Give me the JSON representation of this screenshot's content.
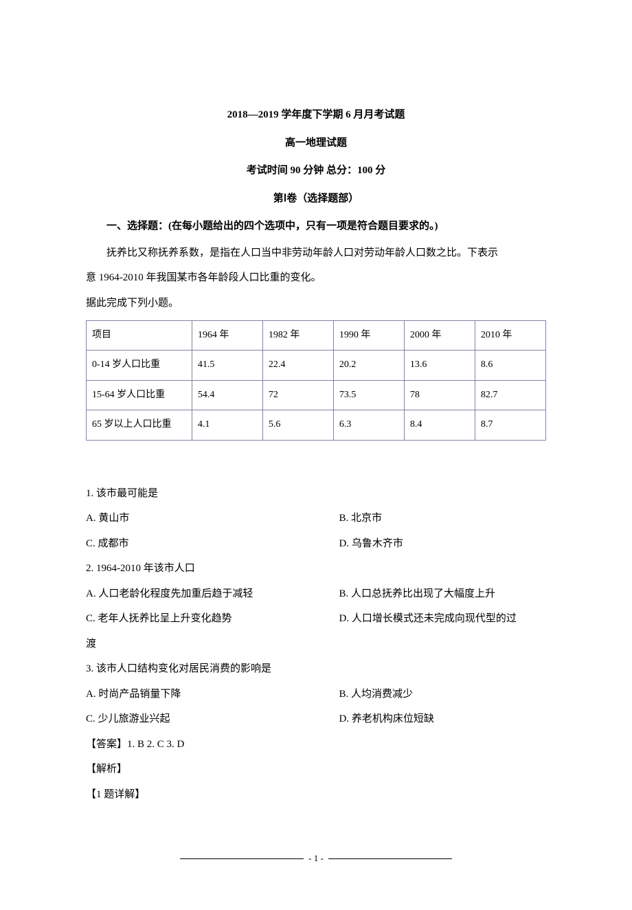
{
  "header": {
    "title": "2018—2019 学年度下学期 6 月月考试题",
    "subtitle": "高一地理试题",
    "exam_info": "考试时间 90 分钟  总分：100 分",
    "section": "第Ⅰ卷（选择题部）"
  },
  "instruction": "一、选择题：(在每小题给出的四个选项中，只有一项是符合题目要求的。)",
  "passage_line1": "抚养比又称抚养系数，是指在人口当中非劳动年龄人口对劳动年龄人口数之比。下表示",
  "passage_line2": "意 1964-2010 年我国某市各年龄段人口比重的变化。",
  "passage_line3": "据此完成下列小题。",
  "table": {
    "border_color": "#8b7ba8",
    "columns": [
      "项目",
      "1964 年",
      "1982 年",
      "1990 年",
      "2000 年",
      "2010 年"
    ],
    "rows": [
      [
        "0-14 岁人口比重",
        "41.5",
        "22.4",
        "20.2",
        "13.6",
        "8.6"
      ],
      [
        "15-64 岁人口比重",
        "54.4",
        "72",
        "73.5",
        "78",
        "82.7"
      ],
      [
        "65 岁以上人口比重",
        "4.1",
        "5.6",
        "6.3",
        "8.4",
        "8.7"
      ]
    ]
  },
  "questions": {
    "q1": {
      "text": "1. 该市最可能是",
      "optA": "A. 黄山市",
      "optB": "B. 北京市",
      "optC": "C. 成都市",
      "optD": "D. 乌鲁木齐市"
    },
    "q2": {
      "text": "2. 1964-2010 年该市人口",
      "optA": "A. 人口老龄化程度先加重后趋于减轻",
      "optB": "B. 人口总抚养比出现了大幅度上升",
      "optC": "C. 老年人抚养比呈上升变化趋势",
      "optD": "D. 人口增长模式还未完成向现代型的过",
      "optD_cont": "渡"
    },
    "q3": {
      "text": "3. 该市人口结构变化对居民消费的影响是",
      "optA": "A. 时尚产品销量下降",
      "optB": "B. 人均消费减少",
      "optC": "C. 少儿旅游业兴起",
      "optD": "D. 养老机构床位短缺"
    }
  },
  "answer": "【答案】1. B    2. C    3. D",
  "analysis": "【解析】",
  "detail": "【1 题详解】",
  "page_number": "- 1 -"
}
